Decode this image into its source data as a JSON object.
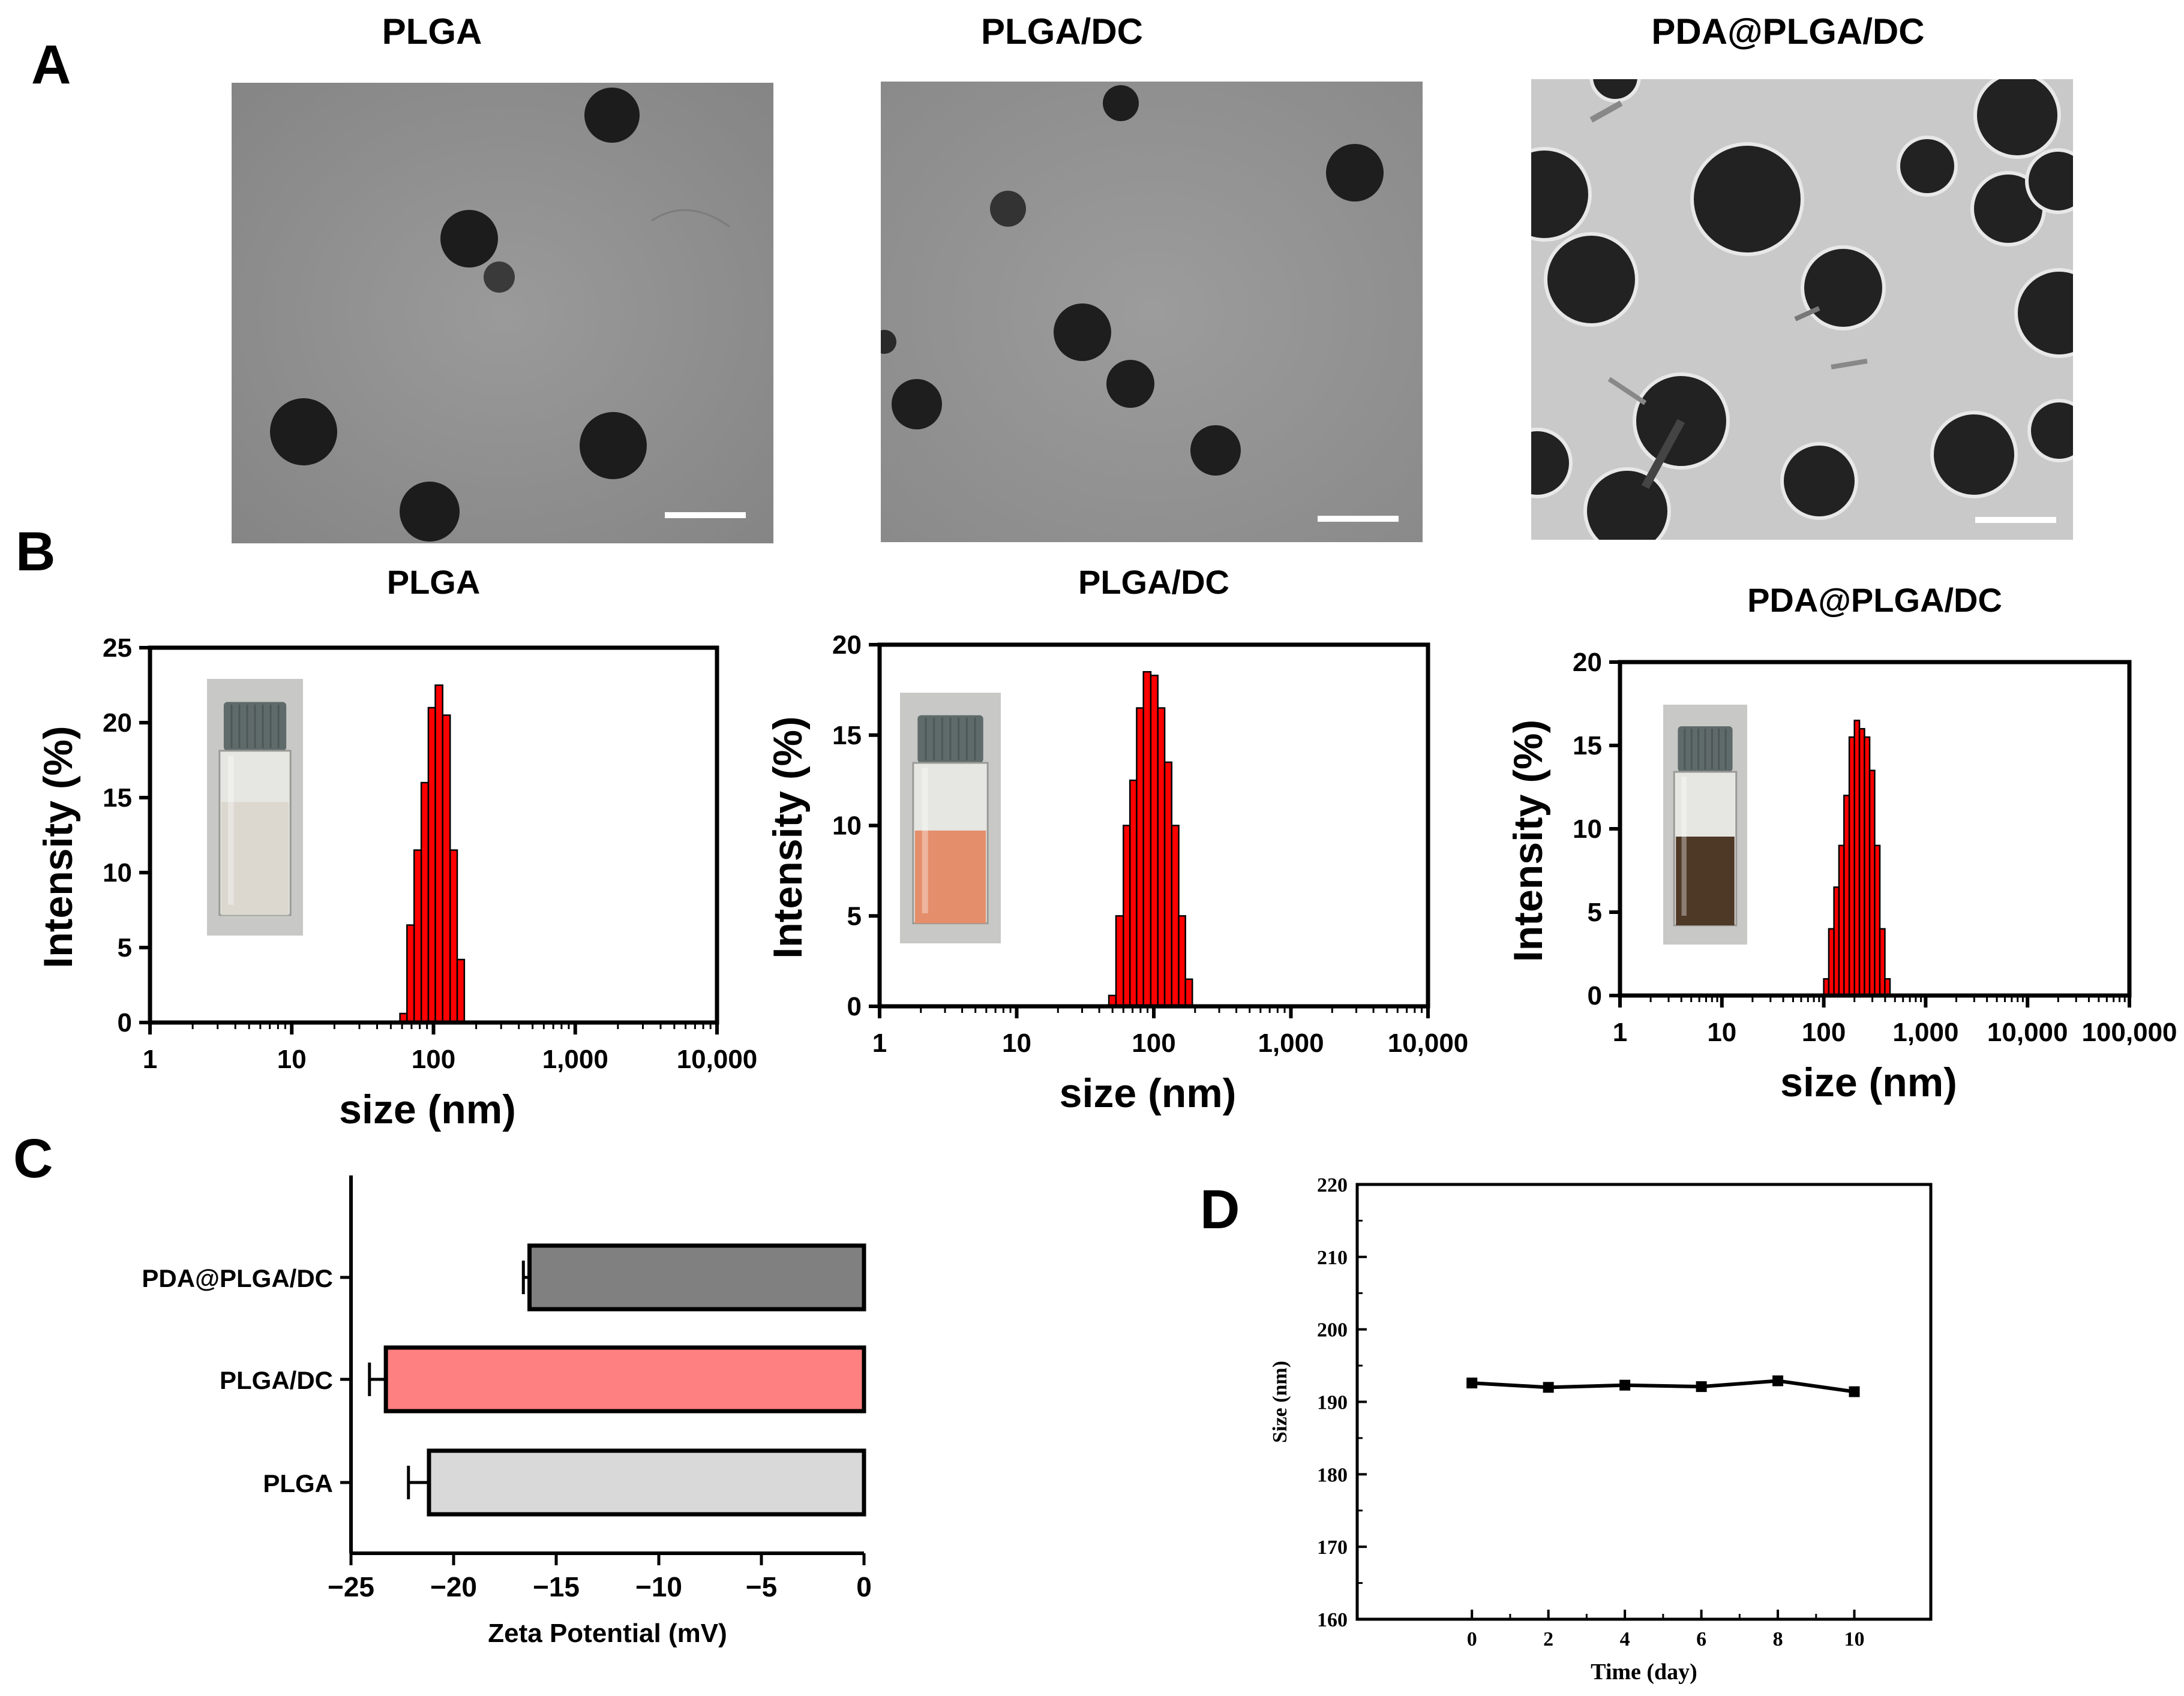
{
  "figure": {
    "panel_labels": [
      "A",
      "B",
      "C",
      "D"
    ],
    "tem": {
      "titles": [
        "PLGA",
        "PLGA/DC",
        "PDA@PLGA/DC"
      ]
    },
    "colors": {
      "dls_bar": "#ff0000",
      "bar_pda": "#808080",
      "bar_plga_dc": "#ff8080",
      "bar_plga": "#d9d9d9",
      "tem_bg": "#8c8c8c",
      "particle": "#1e1e1e"
    }
  },
  "chart_data": [
    {
      "id": "B1",
      "type": "bar",
      "title": "PLGA",
      "xlabel": "size (nm)",
      "ylabel": "Intensity (%)",
      "xscale": "log",
      "xlim": [
        1,
        10000
      ],
      "ylim": [
        0,
        25
      ],
      "xticks": [
        1,
        10,
        100,
        1000,
        10000
      ],
      "xtick_labels": [
        "1",
        "10",
        "100",
        "1,000",
        "10,000"
      ],
      "yticks": [
        0,
        5,
        10,
        15,
        20,
        25
      ],
      "ytick_labels": [
        "0",
        "5",
        "10",
        "15",
        "20",
        "25"
      ],
      "x": [
        58,
        65,
        73,
        82,
        92,
        103,
        116,
        131,
        147,
        165
      ],
      "values": [
        0.6,
        6.5,
        11.5,
        16.0,
        21.0,
        22.5,
        20.5,
        11.5,
        4.2,
        0.0
      ],
      "inset": "vial-milky"
    },
    {
      "id": "B2",
      "type": "bar",
      "title": "PLGA/DC",
      "xlabel": "size (nm)",
      "ylabel": "Intensity (%)",
      "xscale": "log",
      "xlim": [
        1,
        10000
      ],
      "ylim": [
        0,
        20
      ],
      "xticks": [
        1,
        10,
        100,
        1000,
        10000
      ],
      "xtick_labels": [
        "1",
        "10",
        "100",
        "1,000",
        "10,000"
      ],
      "yticks": [
        0,
        5,
        10,
        15,
        20
      ],
      "ytick_labels": [
        "0",
        "5",
        "10",
        "15",
        "20"
      ],
      "x": [
        47,
        53,
        60,
        67,
        75,
        84,
        95,
        107,
        120,
        135,
        152,
        170,
        191
      ],
      "values": [
        0.6,
        5.0,
        10.0,
        12.5,
        16.5,
        18.5,
        18.3,
        16.5,
        13.5,
        10.0,
        5.0,
        1.5,
        0.0
      ],
      "inset": "vial-orange"
    },
    {
      "id": "B3",
      "type": "bar",
      "title": "PDA@PLGA/DC",
      "xlabel": "size (nm)",
      "ylabel": "Intensity (%)",
      "xscale": "log",
      "xlim": [
        1,
        100000
      ],
      "ylim": [
        0,
        20
      ],
      "xticks": [
        1,
        10,
        100,
        1000,
        10000,
        100000
      ],
      "xtick_labels": [
        "1",
        "10",
        "100",
        "1,000",
        "10,000",
        "100,000"
      ],
      "yticks": [
        0,
        5,
        10,
        15,
        20
      ],
      "ytick_labels": [
        "0",
        "5",
        "10",
        "15",
        "20"
      ],
      "x": [
        100,
        112,
        126,
        141,
        158,
        178,
        200,
        224,
        251,
        282,
        316,
        355,
        398,
        447
      ],
      "values": [
        1.0,
        4.0,
        6.5,
        9.0,
        12.0,
        15.5,
        16.5,
        16.0,
        15.5,
        13.5,
        9.0,
        4.0,
        1.0,
        0.0
      ],
      "inset": "vial-brown"
    },
    {
      "id": "C",
      "type": "bar",
      "orientation": "horizontal",
      "title": "",
      "xlabel": "Zeta Potential (mV)",
      "ylabel": "",
      "categories": [
        "PDA@PLGA/DC",
        "PLGA/DC",
        "PLGA"
      ],
      "values": [
        -16.3,
        -23.3,
        -21.2
      ],
      "errors": [
        0.3,
        0.8,
        1.0
      ],
      "xlim": [
        -25,
        0
      ],
      "xticks": [
        -25,
        -20,
        -15,
        -10,
        -5,
        0
      ],
      "xtick_labels": [
        "−25",
        "−20",
        "−15",
        "−10",
        "−5",
        "0"
      ]
    },
    {
      "id": "D",
      "type": "line",
      "title": "",
      "xlabel": "Time (day)",
      "ylabel": "Size (nm)",
      "x": [
        0,
        2,
        4,
        6,
        8,
        10
      ],
      "values": [
        192.6,
        192.0,
        192.3,
        192.1,
        192.9,
        191.4
      ],
      "xlim": [
        -3,
        12
      ],
      "ylim": [
        160,
        220
      ],
      "xticks": [
        0,
        2,
        4,
        6,
        8,
        10
      ],
      "xtick_labels": [
        "0",
        "2",
        "4",
        "6",
        "8",
        "10"
      ],
      "yticks": [
        160,
        170,
        180,
        190,
        200,
        210,
        220
      ],
      "ytick_labels": [
        "160",
        "170",
        "180",
        "190",
        "200",
        "210",
        "220"
      ]
    }
  ]
}
